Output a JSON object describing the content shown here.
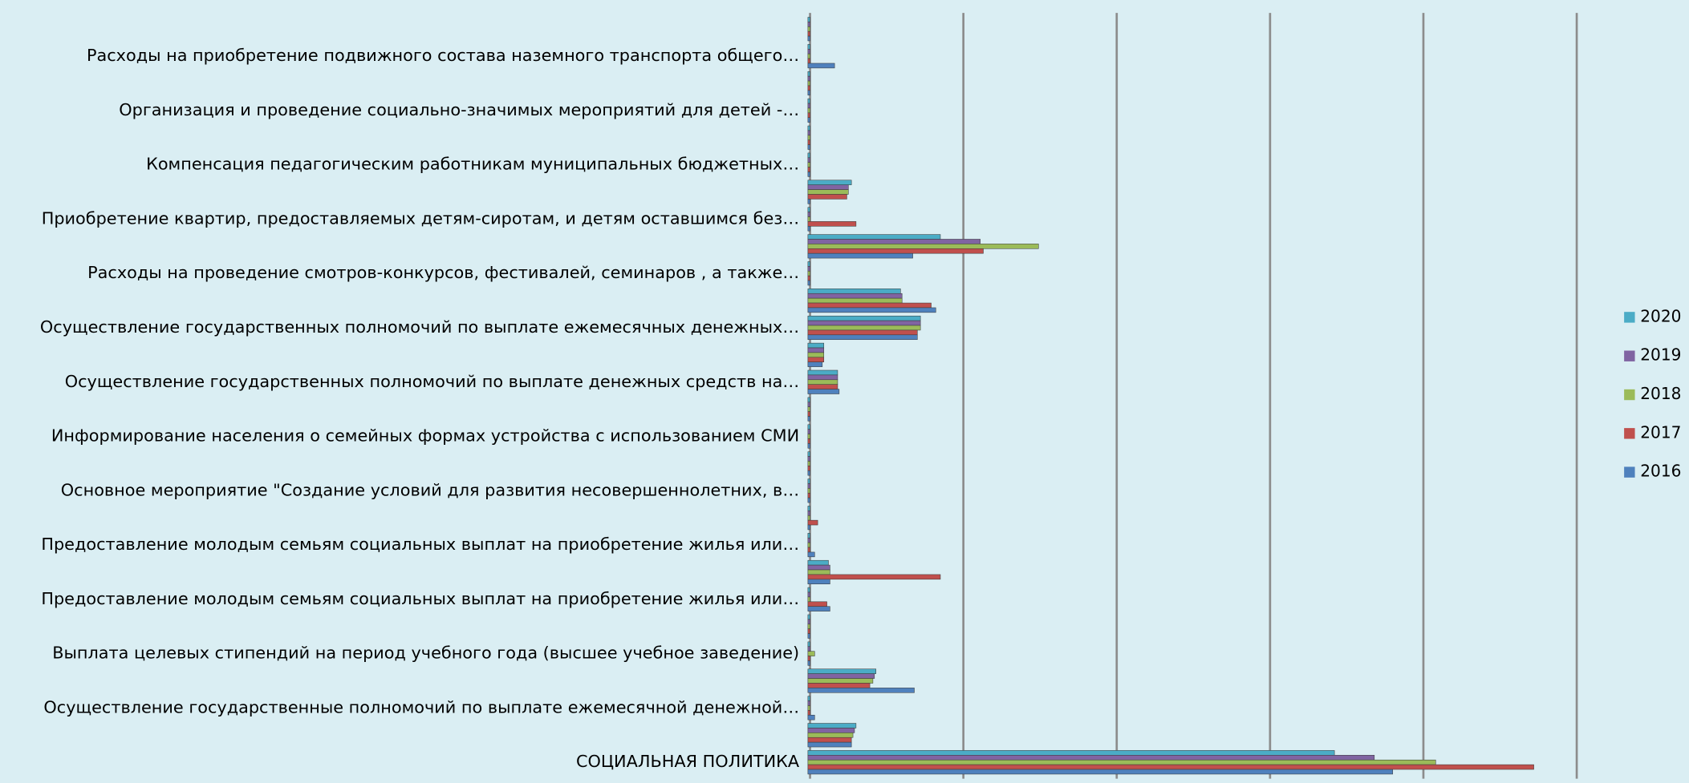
{
  "chart_data": {
    "type": "hbar",
    "xlim": [
      0,
      5
    ],
    "xticks": [
      0,
      1,
      2,
      3,
      4,
      5
    ],
    "grid": true,
    "legend": "right",
    "categories": [
      null,
      "Расходы на приобретение подвижного состава наземного транспорта общего…",
      null,
      "Организация и проведение социально-значимых мероприятий для детей -…",
      null,
      "Компенсация педагогическим работникам муниципальных бюджетных…",
      null,
      "Приобретение квартир, предоставляемых детям-сиротам, и детям оставшимся без…",
      null,
      "Расходы на проведение смотров-конкурсов, фестивалей, семинаров , а также…",
      null,
      "Осуществление государственных полномочий по выплате ежемесячных денежных…",
      null,
      "Осуществление государственных полномочий по выплате денежных средств на…",
      null,
      "Информирование населения о семейных формах устройства с использованием СМИ",
      null,
      "Основное мероприятие \"Создание условий для развития несовершеннолетних, в…",
      null,
      "Предоставление молодым семьям социальных выплат на приобретение жилья или…",
      null,
      "Предоставление молодым семьям социальных выплат на приобретение жилья или…",
      null,
      "Выплата целевых стипендий на период учебного года (высшее учебное заведение)",
      null,
      "Осуществление государственные полномочий по выплате ежемесячной денежной…",
      null,
      "СОЦИАЛЬНАЯ ПОЛИТИКА"
    ],
    "series": [
      {
        "name": "2020",
        "color": "#4bacc6",
        "values": [
          0,
          0,
          0,
          0,
          0,
          0,
          0.27,
          0,
          0.85,
          0,
          0.59,
          0.72,
          0.09,
          0.18,
          0,
          0,
          0,
          0,
          0,
          0,
          0.12,
          0,
          0,
          0,
          0.43,
          0,
          0.3,
          3.42
        ]
      },
      {
        "name": "2019",
        "color": "#8064a2",
        "values": [
          0,
          0,
          0,
          0,
          0,
          0,
          0.25,
          0,
          1.11,
          0,
          0.6,
          0.72,
          0.09,
          0.18,
          0,
          0,
          0,
          0,
          0,
          0,
          0.13,
          0,
          0,
          0,
          0.42,
          0,
          0.29,
          3.68
        ]
      },
      {
        "name": "2018",
        "color": "#9bbb59",
        "values": [
          0,
          0,
          0,
          0,
          0,
          0,
          0.25,
          0,
          1.49,
          0,
          0.6,
          0.72,
          0.09,
          0.18,
          0,
          0,
          0,
          0,
          0,
          0,
          0.13,
          0,
          0,
          0.03,
          0.41,
          0,
          0.28,
          4.08
        ]
      },
      {
        "name": "2017",
        "color": "#c0504d",
        "values": [
          0,
          0,
          0,
          0,
          0,
          0,
          0.24,
          0.3,
          1.13,
          0,
          0.79,
          0.7,
          0.09,
          0.18,
          0,
          0,
          0,
          0,
          0.05,
          0,
          0.85,
          0.11,
          0,
          0,
          0.39,
          0,
          0.27,
          4.72
        ]
      },
      {
        "name": "2016",
        "color": "#4f81bd",
        "values": [
          0,
          0.16,
          0,
          0,
          0,
          0,
          0,
          0,
          0.67,
          0,
          0.82,
          0.7,
          0.08,
          0.19,
          0,
          0,
          0,
          0,
          0,
          0.03,
          0.13,
          0.13,
          0,
          0,
          0.68,
          0.03,
          0.27,
          3.8
        ]
      }
    ]
  }
}
